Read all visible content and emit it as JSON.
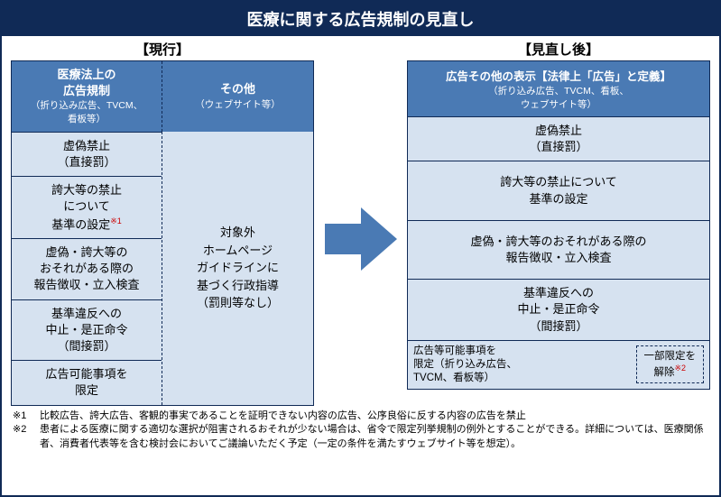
{
  "title": "医療に関する広告規制の見直し",
  "left": {
    "section_label": "【現行】",
    "header_left": {
      "title": "医療法上の\n広告規制",
      "sub": "（折り込み広告、TVCM、\n看板等）"
    },
    "header_right": {
      "title": "その他",
      "sub": "（ウェブサイト等）"
    },
    "cells": [
      "虚偽禁止\n（直接罰）",
      "誇大等の禁止\nについて\n基準の設定",
      "虚偽・誇大等の\nおそれがある際の\n報告徴収・立入検査",
      "基準違反への\n中止・是正命令\n（間接罰）",
      "広告可能事項を\n限定"
    ],
    "cell2_note": "※1",
    "right_text": "対象外\nホームページ\nガイドラインに\n基づく行政指導\n（罰則等なし）"
  },
  "right": {
    "section_label": "【見直し後】",
    "header": {
      "title": "広告その他の表示【法律上「広告」と定義】",
      "sub": "（折り込み広告、TVCM、看板、\nウェブサイト等）"
    },
    "cells": [
      "虚偽禁止\n（直接罰）",
      "誇大等の禁止について\n基準の設定",
      "虚偽・誇大等のおそれがある際の\n報告徴収・立入検査",
      "基準違反への\n中止・是正命令\n（間接罰）"
    ],
    "last": {
      "text": "広告等可能事項を\n限定（折り込み広告、\nTVCM、看板等）",
      "box": "一部限定を\n解除",
      "box_note": "※2"
    }
  },
  "arrow_color": "#4a7ab4",
  "footnotes": [
    {
      "label": "※1",
      "text": "比較広告、誇大広告、客観的事実であることを証明できない内容の広告、公序良俗に反する内容の広告を禁止"
    },
    {
      "label": "※2",
      "text": "患者による医療に関する適切な選択が阻害されるおそれが少ない場合は、省令で限定列挙規制の例外とすることができる。詳細については、医療関係者、消費者代表等を含む検討会においてご議論いただく予定（一定の条件を満たすウェブサイト等を想定）。"
    }
  ]
}
